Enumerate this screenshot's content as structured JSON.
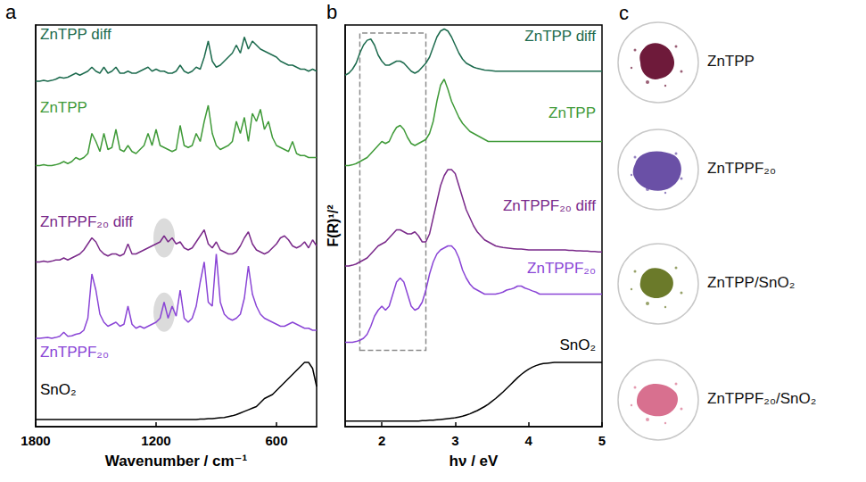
{
  "chart_data": [
    {
      "panel_label": "a",
      "type": "line",
      "x_label": "Wavenumber / cm⁻¹",
      "x": [
        1800,
        1780,
        1760,
        1740,
        1720,
        1700,
        1680,
        1660,
        1640,
        1620,
        1600,
        1580,
        1560,
        1540,
        1520,
        1500,
        1480,
        1460,
        1440,
        1420,
        1400,
        1380,
        1360,
        1340,
        1320,
        1300,
        1280,
        1260,
        1240,
        1220,
        1200,
        1180,
        1160,
        1140,
        1120,
        1100,
        1080,
        1060,
        1040,
        1020,
        1000,
        980,
        960,
        940,
        920,
        900,
        880,
        860,
        840,
        820,
        800,
        780,
        760,
        740,
        720,
        700,
        680,
        660,
        640,
        620,
        600,
        580,
        560,
        540,
        520,
        500,
        480,
        460,
        440,
        420,
        400
      ],
      "xlim": [
        1800,
        400
      ],
      "xticks": [
        1800,
        1200,
        600
      ],
      "ylim": [
        0,
        10
      ],
      "tick_labels": "x",
      "series": [
        {
          "name": "ZnTPP diff",
          "color": "#1d6b4e",
          "values": [
            8.6,
            8.6,
            8.62,
            8.6,
            8.62,
            8.65,
            8.7,
            8.68,
            8.7,
            8.75,
            8.8,
            8.75,
            8.8,
            8.85,
            8.95,
            8.85,
            8.8,
            8.95,
            8.8,
            8.85,
            8.95,
            8.8,
            8.8,
            8.85,
            8.8,
            8.8,
            8.85,
            8.9,
            8.95,
            8.85,
            8.9,
            8.85,
            8.85,
            8.8,
            8.8,
            8.85,
            9.0,
            8.85,
            8.8,
            8.85,
            8.95,
            8.9,
            9.2,
            9.6,
            9.1,
            8.95,
            9.0,
            9.1,
            9.2,
            9.3,
            9.5,
            9.3,
            9.7,
            9.4,
            9.6,
            9.5,
            9.4,
            9.35,
            9.3,
            9.25,
            9.2,
            9.1,
            9.05,
            9.0,
            9.0,
            8.95,
            8.9,
            8.9,
            8.85,
            8.9,
            8.85
          ]
        },
        {
          "name": "ZnTPP",
          "color": "#3f9a38",
          "values": [
            6.5,
            6.5,
            6.52,
            6.5,
            6.5,
            6.52,
            6.55,
            6.6,
            6.55,
            6.6,
            6.7,
            6.65,
            6.7,
            6.8,
            7.3,
            7.1,
            6.85,
            7.3,
            6.9,
            6.95,
            7.4,
            6.9,
            6.85,
            7.0,
            6.85,
            6.8,
            6.9,
            7.0,
            7.3,
            7.0,
            7.4,
            7.0,
            6.95,
            6.9,
            6.85,
            6.9,
            7.5,
            7.0,
            6.95,
            7.0,
            7.3,
            7.1,
            7.6,
            8.0,
            7.3,
            7.0,
            6.9,
            6.95,
            7.0,
            7.1,
            7.6,
            7.3,
            7.7,
            7.1,
            7.8,
            7.6,
            7.9,
            7.4,
            7.6,
            7.2,
            7.0,
            6.95,
            6.9,
            6.85,
            7.1,
            6.8,
            6.75,
            6.75,
            6.7,
            6.7,
            6.7
          ]
        },
        {
          "name": "ZnTPPF₂₀ diff",
          "color": "#7a2a8a",
          "values": [
            4.1,
            4.1,
            4.12,
            4.1,
            4.12,
            4.15,
            4.15,
            4.2,
            4.15,
            4.2,
            4.25,
            4.3,
            4.4,
            4.55,
            4.7,
            4.6,
            4.4,
            4.3,
            4.25,
            4.3,
            4.3,
            4.25,
            4.3,
            4.55,
            4.3,
            4.3,
            4.35,
            4.4,
            4.45,
            4.5,
            4.55,
            4.6,
            4.75,
            4.6,
            4.7,
            4.55,
            4.6,
            4.45,
            4.4,
            4.45,
            4.6,
            4.75,
            4.9,
            4.55,
            4.45,
            4.6,
            4.4,
            4.35,
            4.3,
            4.3,
            4.35,
            4.5,
            4.7,
            4.85,
            4.55,
            4.4,
            4.35,
            4.3,
            4.35,
            4.45,
            4.55,
            4.7,
            4.75,
            4.65,
            4.5,
            4.45,
            4.5,
            4.6,
            4.45,
            4.65,
            4.5
          ]
        },
        {
          "name": "ZnTPPF₂₀",
          "color": "#8a45d6",
          "values": [
            2.2,
            2.2,
            2.21,
            2.22,
            2.2,
            2.22,
            2.25,
            2.35,
            2.25,
            2.26,
            2.3,
            2.32,
            2.4,
            2.7,
            3.8,
            3.4,
            2.8,
            2.6,
            2.5,
            2.55,
            2.6,
            2.5,
            2.55,
            3.0,
            2.55,
            2.45,
            2.5,
            2.45,
            2.5,
            2.55,
            2.6,
            2.7,
            3.1,
            2.7,
            3.0,
            2.75,
            3.4,
            2.7,
            2.6,
            2.7,
            3.0,
            3.6,
            4.1,
            3.1,
            3.0,
            4.3,
            3.1,
            2.8,
            2.7,
            2.65,
            2.7,
            2.8,
            3.2,
            4.0,
            3.3,
            3.0,
            2.8,
            2.7,
            2.65,
            2.6,
            2.55,
            2.5,
            2.5,
            2.55,
            2.6,
            2.55,
            2.5,
            2.45,
            2.45,
            2.4,
            2.4
          ]
        },
        {
          "name": "SnO₂",
          "color": "#000000",
          "values": [
            0.18,
            0.18,
            0.18,
            0.18,
            0.18,
            0.18,
            0.18,
            0.18,
            0.18,
            0.18,
            0.18,
            0.18,
            0.18,
            0.18,
            0.18,
            0.18,
            0.18,
            0.18,
            0.18,
            0.18,
            0.18,
            0.18,
            0.18,
            0.18,
            0.18,
            0.18,
            0.18,
            0.18,
            0.18,
            0.18,
            0.18,
            0.18,
            0.18,
            0.18,
            0.18,
            0.18,
            0.18,
            0.18,
            0.18,
            0.18,
            0.18,
            0.19,
            0.19,
            0.2,
            0.2,
            0.21,
            0.22,
            0.23,
            0.25,
            0.27,
            0.3,
            0.34,
            0.38,
            0.42,
            0.46,
            0.5,
            0.6,
            0.7,
            0.75,
            0.8,
            0.9,
            1.0,
            1.1,
            1.2,
            1.3,
            1.4,
            1.5,
            1.6,
            1.6,
            1.45,
            1.0
          ]
        }
      ],
      "highlights": [
        {
          "x": 1160,
          "y": 4.7
        },
        {
          "x": 1160,
          "y": 2.85
        }
      ]
    },
    {
      "panel_label": "b",
      "type": "line",
      "x_label": "hν / eV",
      "y_label": "F(R)¹/²",
      "x": [
        1.5,
        1.55,
        1.6,
        1.65,
        1.7,
        1.75,
        1.8,
        1.85,
        1.9,
        1.95,
        2,
        2.05,
        2.1,
        2.15,
        2.2,
        2.25,
        2.3,
        2.35,
        2.4,
        2.45,
        2.5,
        2.55,
        2.6,
        2.65,
        2.7,
        2.75,
        2.8,
        2.85,
        2.9,
        2.95,
        3,
        3.05,
        3.1,
        3.15,
        3.2,
        3.25,
        3.3,
        3.35,
        3.4,
        3.45,
        3.5,
        3.55,
        3.6,
        3.65,
        3.7,
        3.75,
        3.8,
        3.85,
        3.9,
        3.95,
        4,
        4.05,
        4.1,
        4.15,
        4.2,
        4.25,
        4.3,
        4.35,
        4.4,
        4.45,
        4.5,
        4.55,
        4.6,
        4.65,
        4.7,
        4.75,
        4.8,
        4.85,
        4.9,
        4.95,
        5
      ],
      "xlim": [
        1.5,
        5
      ],
      "xticks": [
        2,
        3,
        4,
        5
      ],
      "ylim": [
        0,
        10
      ],
      "tick_labels": "x",
      "series": [
        {
          "name": "ZnTPP diff",
          "color": "#1d6b4e",
          "values": [
            8.75,
            8.8,
            8.9,
            9.05,
            9.3,
            9.5,
            9.62,
            9.65,
            9.5,
            9.25,
            9.1,
            9.0,
            9.0,
            9.05,
            9.1,
            9.1,
            9.05,
            8.95,
            8.85,
            8.8,
            8.85,
            8.95,
            9.05,
            9.2,
            9.45,
            9.7,
            9.85,
            9.9,
            9.85,
            9.7,
            9.5,
            9.3,
            9.15,
            9.05,
            9.0,
            8.95,
            8.92,
            8.9,
            8.88,
            8.87,
            8.86,
            8.85,
            8.85,
            8.85,
            8.85,
            8.85,
            8.85,
            8.85,
            8.85,
            8.85,
            8.85,
            8.85,
            8.85,
            8.85,
            8.85,
            8.85,
            8.85,
            8.85,
            8.85,
            8.85,
            8.85,
            8.85,
            8.85,
            8.85,
            8.85,
            8.85,
            8.85,
            8.85,
            8.85,
            8.85,
            8.85
          ]
        },
        {
          "name": "ZnTPP",
          "color": "#3f9a38",
          "values": [
            6.5,
            6.5,
            6.52,
            6.55,
            6.6,
            6.65,
            6.7,
            6.8,
            6.9,
            7.0,
            7.1,
            7.05,
            7.1,
            7.3,
            7.45,
            7.5,
            7.4,
            7.2,
            7.05,
            7.0,
            7.05,
            7.1,
            7.15,
            7.3,
            7.6,
            8.1,
            8.5,
            8.65,
            8.4,
            8.1,
            7.9,
            7.7,
            7.55,
            7.45,
            7.35,
            7.3,
            7.25,
            7.2,
            7.15,
            7.1,
            7.1,
            7.1,
            7.1,
            7.1,
            7.1,
            7.1,
            7.1,
            7.1,
            7.1,
            7.1,
            7.1,
            7.1,
            7.1,
            7.1,
            7.1,
            7.1,
            7.1,
            7.1,
            7.1,
            7.1,
            7.1,
            7.1,
            7.1,
            7.1,
            7.1,
            7.1,
            7.1,
            7.1,
            7.1,
            7.1,
            7.1
          ]
        },
        {
          "name": "ZnTPPF₂₀ diff",
          "color": "#7a2a8a",
          "values": [
            4.0,
            4.0,
            4.02,
            4.05,
            4.1,
            4.15,
            4.2,
            4.3,
            4.4,
            4.5,
            4.55,
            4.6,
            4.7,
            4.8,
            4.9,
            4.9,
            4.85,
            4.8,
            4.8,
            4.85,
            4.75,
            4.6,
            4.6,
            4.8,
            5.2,
            5.6,
            6.0,
            6.25,
            6.4,
            6.4,
            6.3,
            6.0,
            5.7,
            5.4,
            5.2,
            5.0,
            4.85,
            4.75,
            4.65,
            4.6,
            4.55,
            4.5,
            4.48,
            4.46,
            4.45,
            4.44,
            4.43,
            4.42,
            4.42,
            4.41,
            4.4,
            4.4,
            4.4,
            4.4,
            4.4,
            4.4,
            4.4,
            4.4,
            4.4,
            4.4,
            4.4,
            4.39,
            4.39,
            4.38,
            4.38,
            4.37,
            4.37,
            4.36,
            4.36,
            4.35,
            4.35
          ]
        },
        {
          "name": "ZnTPPF₂₀",
          "color": "#8a45d6",
          "values": [
            2.1,
            2.1,
            2.1,
            2.12,
            2.15,
            2.2,
            2.3,
            2.5,
            2.75,
            2.9,
            3.0,
            2.9,
            3.0,
            3.3,
            3.6,
            3.7,
            3.6,
            3.3,
            3.0,
            2.9,
            2.95,
            3.1,
            3.4,
            3.8,
            4.1,
            4.3,
            4.4,
            4.45,
            4.5,
            4.5,
            4.4,
            4.2,
            3.9,
            3.7,
            3.55,
            3.45,
            3.4,
            3.35,
            3.3,
            3.3,
            3.3,
            3.3,
            3.32,
            3.35,
            3.4,
            3.42,
            3.45,
            3.5,
            3.5,
            3.45,
            3.42,
            3.38,
            3.35,
            3.3,
            3.3,
            3.3,
            3.3,
            3.3,
            3.3,
            3.3,
            3.3,
            3.3,
            3.3,
            3.3,
            3.3,
            3.3,
            3.3,
            3.3,
            3.3,
            3.3,
            3.3
          ]
        },
        {
          "name": "SnO₂",
          "color": "#000000",
          "values": [
            0.14,
            0.14,
            0.14,
            0.14,
            0.14,
            0.14,
            0.14,
            0.14,
            0.14,
            0.14,
            0.14,
            0.14,
            0.14,
            0.14,
            0.14,
            0.14,
            0.14,
            0.14,
            0.14,
            0.14,
            0.14,
            0.15,
            0.15,
            0.16,
            0.16,
            0.17,
            0.18,
            0.19,
            0.2,
            0.21,
            0.22,
            0.24,
            0.26,
            0.29,
            0.32,
            0.36,
            0.4,
            0.45,
            0.5,
            0.56,
            0.63,
            0.7,
            0.78,
            0.86,
            0.95,
            1.04,
            1.13,
            1.22,
            1.3,
            1.37,
            1.43,
            1.48,
            1.52,
            1.55,
            1.57,
            1.58,
            1.59,
            1.6,
            1.6,
            1.6,
            1.6,
            1.6,
            1.6,
            1.6,
            1.6,
            1.6,
            1.6,
            1.6,
            1.6,
            1.6,
            1.6
          ]
        }
      ],
      "highlight_box": {
        "x": [
          1.7,
          2.6
        ],
        "y": [
          1.9,
          9.8
        ]
      }
    }
  ],
  "photos": {
    "panel_label": "c",
    "samples": [
      {
        "label": "ZnTPP",
        "color": "#6e1a3a"
      },
      {
        "label": "ZnTPPF₂₀",
        "color": "#6a50a6"
      },
      {
        "label": "ZnTPP/SnO₂",
        "color": "#6b7a2a"
      },
      {
        "label": "ZnTPPF₂₀/SnO₂",
        "color": "#d8708f"
      }
    ]
  }
}
